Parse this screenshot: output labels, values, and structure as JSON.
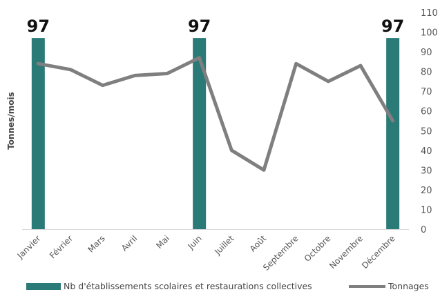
{
  "chart_data": {
    "type": "bar+line",
    "categories": [
      "Janvier",
      "Février",
      "Mars",
      "Avril",
      "Mai",
      "Juin",
      "Juillet",
      "Août",
      "Septembre",
      "Octobre",
      "Novembre",
      "Décembre"
    ],
    "series": [
      {
        "name": "Nb d'établissements scolaires et restaurations collectives",
        "type": "bar",
        "color": "#2a7a77",
        "values": [
          97,
          null,
          null,
          null,
          null,
          97,
          null,
          null,
          null,
          null,
          null,
          97
        ],
        "data_labels": [
          "97",
          "",
          "",
          "",
          "",
          "97",
          "",
          "",
          "",
          "",
          "",
          "97"
        ]
      },
      {
        "name": "Tonnages",
        "type": "line",
        "color": "#7f7f7f",
        "values": [
          84,
          81,
          73,
          78,
          79,
          87,
          40,
          30,
          84,
          75,
          83,
          55
        ]
      }
    ],
    "ylabel": "Tonnes/mois",
    "ylim": [
      0,
      110
    ],
    "yticks": [
      "0",
      "10",
      "20",
      "30",
      "40",
      "50",
      "60",
      "70",
      "80",
      "90",
      "100",
      "110"
    ],
    "grid": false,
    "legend_position": "bottom"
  }
}
